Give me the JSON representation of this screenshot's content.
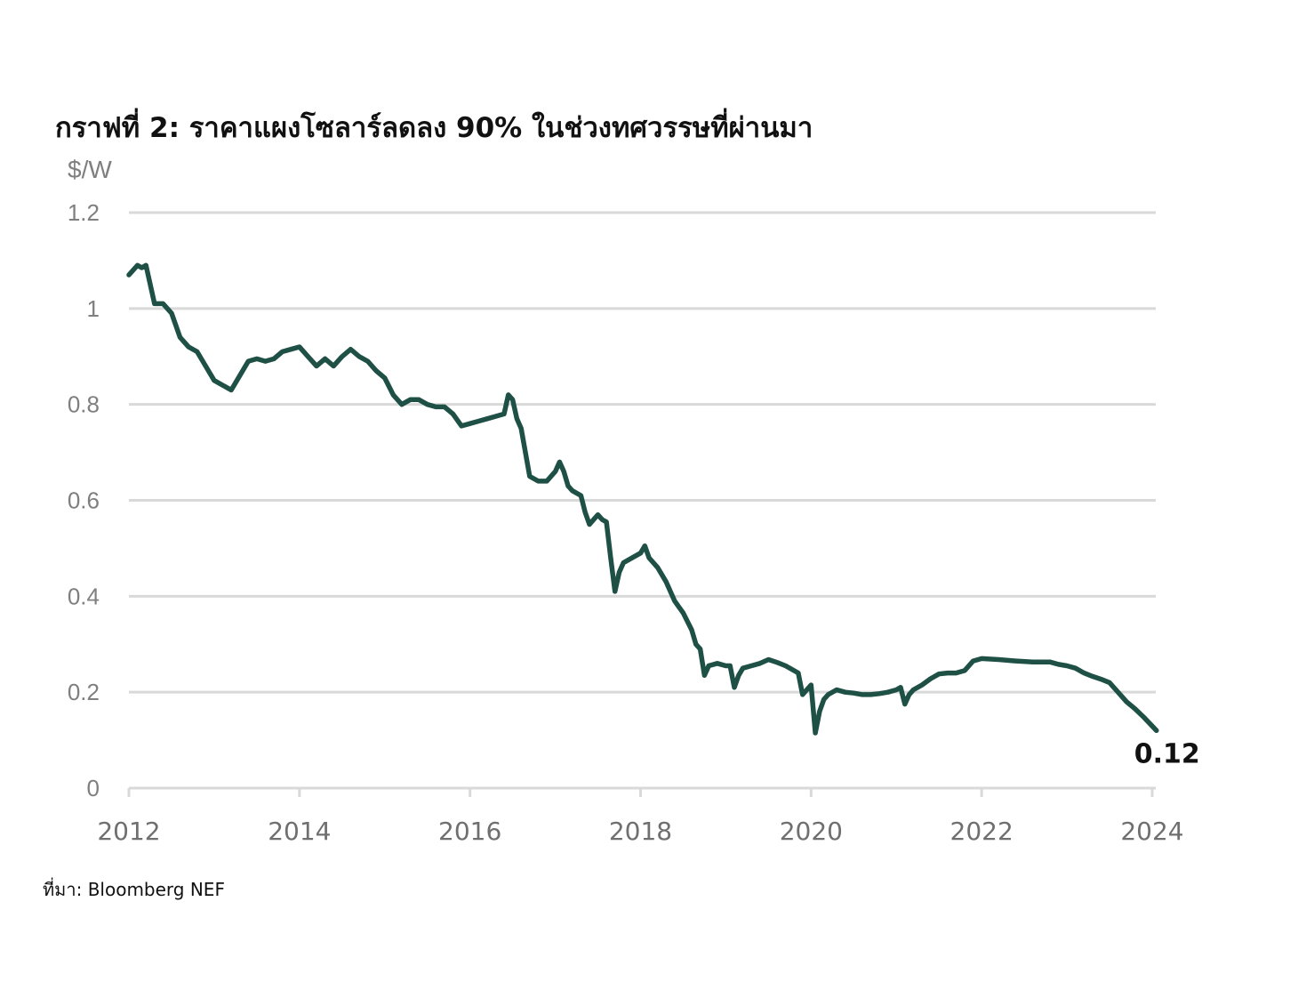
{
  "chart_data": {
    "type": "line",
    "title": "กราฟที่ 2: ราคาแผงโซลาร์ลดลง 90% ในช่วงทศวรรษที่ผ่านมา",
    "ylabel": "$/W",
    "xlabel": "",
    "xlim": [
      2012,
      2024.05
    ],
    "ylim": [
      0,
      1.2
    ],
    "yticks": [
      "0",
      "0.2",
      "0.4",
      "0.6",
      "0.8",
      "1",
      "1.2"
    ],
    "xticks": [
      "2012",
      "2014",
      "2016",
      "2018",
      "2020",
      "2022",
      "2024"
    ],
    "grid": true,
    "legend": "none",
    "line_color": "#1e5045",
    "end_label": "0.12",
    "series": [
      {
        "x": [
          2012.0,
          2012.05,
          2012.1,
          2012.15,
          2012.2,
          2012.3,
          2012.4,
          2012.5,
          2012.6,
          2012.7,
          2012.8,
          2012.9,
          2013.0,
          2013.1,
          2013.2,
          2013.3,
          2013.4,
          2013.5,
          2013.6,
          2013.7,
          2013.8,
          2013.9,
          2014.0,
          2014.1,
          2014.2,
          2014.3,
          2014.4,
          2014.5,
          2014.6,
          2014.7,
          2014.8,
          2014.9,
          2015.0,
          2015.1,
          2015.2,
          2015.3,
          2015.4,
          2015.5,
          2015.6,
          2015.7,
          2015.8,
          2015.9,
          2016.0,
          2016.1,
          2016.2,
          2016.3,
          2016.4,
          2016.45,
          2016.5,
          2016.55,
          2016.6,
          2016.65,
          2016.7,
          2016.8,
          2016.9,
          2017.0,
          2017.05,
          2017.1,
          2017.15,
          2017.2,
          2017.3,
          2017.35,
          2017.4,
          2017.5,
          2017.55,
          2017.6,
          2017.65,
          2017.7,
          2017.75,
          2017.8,
          2017.9,
          2018.0,
          2018.05,
          2018.1,
          2018.2,
          2018.3,
          2018.4,
          2018.5,
          2018.6,
          2018.65,
          2018.7,
          2018.75,
          2018.8,
          2018.9,
          2019.0,
          2019.05,
          2019.1,
          2019.15,
          2019.2,
          2019.3,
          2019.4,
          2019.5,
          2019.6,
          2019.7,
          2019.8,
          2019.85,
          2019.9,
          2020.0,
          2020.05,
          2020.1,
          2020.15,
          2020.2,
          2020.3,
          2020.4,
          2020.5,
          2020.6,
          2020.7,
          2020.8,
          2020.9,
          2021.0,
          2021.05,
          2021.1,
          2021.15,
          2021.2,
          2021.3,
          2021.4,
          2021.5,
          2021.6,
          2021.7,
          2021.8,
          2021.9,
          2022.0,
          2022.2,
          2022.4,
          2022.6,
          2022.8,
          2022.9,
          2023.0,
          2023.1,
          2023.2,
          2023.3,
          2023.4,
          2023.5,
          2023.6,
          2023.7,
          2023.8,
          2023.9,
          2024.05
        ],
        "y": [
          1.07,
          1.08,
          1.09,
          1.085,
          1.09,
          1.01,
          1.01,
          0.99,
          0.94,
          0.92,
          0.91,
          0.88,
          0.85,
          0.84,
          0.83,
          0.86,
          0.89,
          0.895,
          0.89,
          0.895,
          0.91,
          0.915,
          0.92,
          0.9,
          0.88,
          0.895,
          0.88,
          0.9,
          0.915,
          0.9,
          0.89,
          0.87,
          0.855,
          0.82,
          0.8,
          0.81,
          0.81,
          0.8,
          0.795,
          0.795,
          0.78,
          0.755,
          0.76,
          0.765,
          0.77,
          0.775,
          0.78,
          0.82,
          0.81,
          0.77,
          0.75,
          0.7,
          0.65,
          0.64,
          0.64,
          0.66,
          0.68,
          0.66,
          0.63,
          0.62,
          0.61,
          0.575,
          0.55,
          0.57,
          0.56,
          0.555,
          0.48,
          0.41,
          0.45,
          0.47,
          0.48,
          0.49,
          0.505,
          0.48,
          0.46,
          0.43,
          0.39,
          0.365,
          0.33,
          0.3,
          0.29,
          0.235,
          0.255,
          0.26,
          0.255,
          0.255,
          0.21,
          0.235,
          0.25,
          0.255,
          0.26,
          0.268,
          0.262,
          0.255,
          0.245,
          0.24,
          0.195,
          0.215,
          0.115,
          0.16,
          0.185,
          0.195,
          0.205,
          0.2,
          0.198,
          0.195,
          0.195,
          0.197,
          0.2,
          0.205,
          0.21,
          0.175,
          0.195,
          0.205,
          0.215,
          0.228,
          0.238,
          0.24,
          0.24,
          0.245,
          0.265,
          0.27,
          0.268,
          0.265,
          0.263,
          0.263,
          0.258,
          0.255,
          0.25,
          0.24,
          0.233,
          0.227,
          0.22,
          0.2,
          0.18,
          0.165,
          0.148,
          0.12
        ]
      }
    ]
  },
  "source": "ที่มา: Bloomberg NEF"
}
